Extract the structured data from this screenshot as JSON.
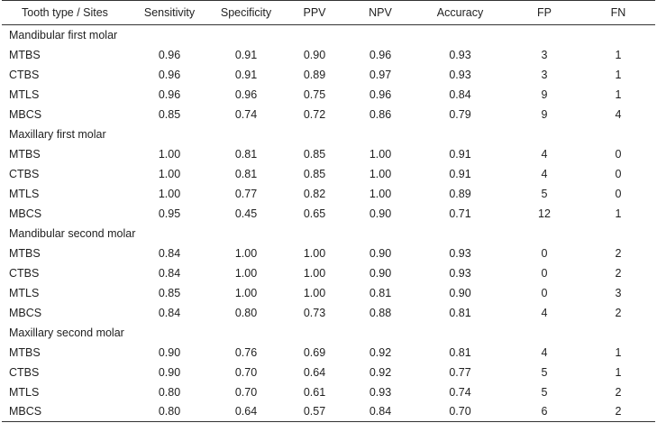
{
  "table": {
    "headers": [
      "Tooth type / Sites",
      "Sensitivity",
      "Specificity",
      "PPV",
      "NPV",
      "Accuracy",
      "FP",
      "FN"
    ],
    "groups": [
      {
        "name": "Mandibular first molar",
        "rows": [
          [
            "MTBS",
            "0.96",
            "0.91",
            "0.90",
            "0.96",
            "0.93",
            "3",
            "1"
          ],
          [
            "CTBS",
            "0.96",
            "0.91",
            "0.89",
            "0.97",
            "0.93",
            "3",
            "1"
          ],
          [
            "MTLS",
            "0.96",
            "0.96",
            "0.75",
            "0.96",
            "0.84",
            "9",
            "1"
          ],
          [
            "MBCS",
            "0.85",
            "0.74",
            "0.72",
            "0.86",
            "0.79",
            "9",
            "4"
          ]
        ]
      },
      {
        "name": "Maxillary first molar",
        "rows": [
          [
            "MTBS",
            "1.00",
            "0.81",
            "0.85",
            "1.00",
            "0.91",
            "4",
            "0"
          ],
          [
            "CTBS",
            "1.00",
            "0.81",
            "0.85",
            "1.00",
            "0.91",
            "4",
            "0"
          ],
          [
            "MTLS",
            "1.00",
            "0.77",
            "0.82",
            "1.00",
            "0.89",
            "5",
            "0"
          ],
          [
            "MBCS",
            "0.95",
            "0.45",
            "0.65",
            "0.90",
            "0.71",
            "12",
            "1"
          ]
        ]
      },
      {
        "name": "Mandibular second molar",
        "rows": [
          [
            "MTBS",
            "0.84",
            "1.00",
            "1.00",
            "0.90",
            "0.93",
            "0",
            "2"
          ],
          [
            "CTBS",
            "0.84",
            "1.00",
            "1.00",
            "0.90",
            "0.93",
            "0",
            "2"
          ],
          [
            "MTLS",
            "0.85",
            "1.00",
            "1.00",
            "0.81",
            "0.90",
            "0",
            "3"
          ],
          [
            "MBCS",
            "0.84",
            "0.80",
            "0.73",
            "0.88",
            "0.81",
            "4",
            "2"
          ]
        ]
      },
      {
        "name": "Maxillary second molar",
        "rows": [
          [
            "MTBS",
            "0.90",
            "0.76",
            "0.69",
            "0.92",
            "0.81",
            "4",
            "1"
          ],
          [
            "CTBS",
            "0.90",
            "0.70",
            "0.64",
            "0.92",
            "0.77",
            "5",
            "1"
          ],
          [
            "MTLS",
            "0.80",
            "0.70",
            "0.61",
            "0.93",
            "0.74",
            "5",
            "2"
          ],
          [
            "MBCS",
            "0.80",
            "0.64",
            "0.57",
            "0.84",
            "0.70",
            "6",
            "2"
          ]
        ]
      }
    ]
  }
}
